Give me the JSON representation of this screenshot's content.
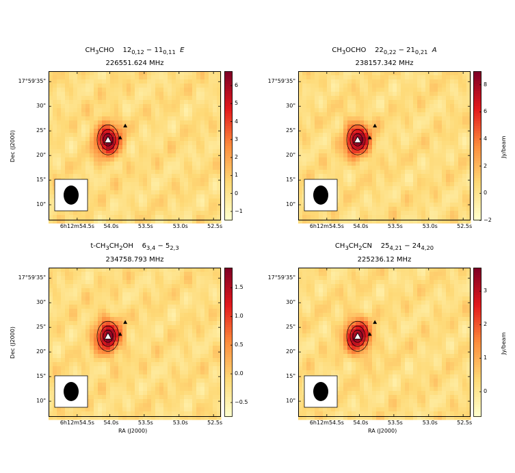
{
  "chart_data": [
    {
      "type": "heatmap",
      "molecule_html": "CH<sub>3</sub>CHO",
      "molecule_text": "CH3CHO",
      "transition_html": "12<sub>0,12</sub> &minus; 11<sub>0,11</sub> &nbsp;<i>E</i>",
      "transition_text": "12_{0,12} - 11_{0,11} E",
      "frequency": "226551.624 MHz",
      "ra_ticks": [
        "6h12m54.5s",
        "54.0s",
        "53.5s",
        "53.0s",
        "52.5s"
      ],
      "dec_ticks": [
        "17°59'35\"",
        "30\"",
        "25\"",
        "20\"",
        "15\"",
        "10\""
      ],
      "xlabel": "",
      "ylabel": "Dec (J2000)",
      "colorbar": {
        "ticks": [
          "6",
          "5",
          "4",
          "3",
          "2",
          "1",
          "0",
          "−1"
        ],
        "values": [
          6,
          5,
          4,
          3,
          2,
          1,
          0,
          -1
        ],
        "min": -1.5,
        "max": 6.8,
        "label": ""
      },
      "peak": 6.5
    },
    {
      "type": "heatmap",
      "molecule_html": "CH<sub>3</sub>OCHO",
      "molecule_text": "CH3OCHO",
      "transition_html": "22<sub>0,22</sub> &minus; 21<sub>0,21</sub> &nbsp;<i>A</i>",
      "transition_text": "22_{0,22} - 21_{0,21} A",
      "frequency": "238157.342 MHz",
      "ra_ticks": [
        "6h12m54.5s",
        "54.0s",
        "53.5s",
        "53.0s",
        "52.5s"
      ],
      "dec_ticks": [
        "17°59'35\"",
        "30\"",
        "25\"",
        "20\"",
        "15\"",
        "10\""
      ],
      "xlabel": "",
      "ylabel": "",
      "colorbar": {
        "ticks": [
          "8",
          "6",
          "4",
          "2",
          "0",
          "−2"
        ],
        "values": [
          8,
          6,
          4,
          2,
          0,
          -2
        ],
        "min": -2,
        "max": 9,
        "label": "Jy/beam"
      },
      "peak": 8.7
    },
    {
      "type": "heatmap",
      "molecule_html": "t-CH<sub>3</sub>CH<sub>2</sub>OH",
      "molecule_text": "t-CH3CH2OH",
      "transition_html": "6<sub>3,4</sub> &minus; 5<sub>2,3</sub>",
      "transition_text": "6_{3,4} - 5_{2,3}",
      "frequency": "234758.793 MHz",
      "ra_ticks": [
        "6h12m54.5s",
        "54.0s",
        "53.5s",
        "53.0s",
        "52.5s"
      ],
      "dec_ticks": [
        "17°59'35\"",
        "30\"",
        "25\"",
        "20\"",
        "15\"",
        "10\""
      ],
      "xlabel": "RA (J2000)",
      "ylabel": "Dec (J2000)",
      "colorbar": {
        "ticks": [
          "1.5",
          "1.0",
          "0.5",
          "0.0",
          "−0.5"
        ],
        "values": [
          1.5,
          1.0,
          0.5,
          0.0,
          -0.5
        ],
        "min": -0.75,
        "max": 1.85,
        "label": ""
      },
      "peak": 1.75
    },
    {
      "type": "heatmap",
      "molecule_html": "CH<sub>3</sub>CH<sub>2</sub>CN",
      "molecule_text": "CH3CH2CN",
      "transition_html": "25<sub>4,21</sub> &minus; 24<sub>4,20</sub>",
      "transition_text": "25_{4,21} - 24_{4,20}",
      "frequency": "225236.12 MHz",
      "ra_ticks": [
        "6h12m54.5s",
        "54.0s",
        "53.5s",
        "53.0s",
        "52.5s"
      ],
      "dec_ticks": [
        "17°59'35\"",
        "30\"",
        "25\"",
        "20\"",
        "15\"",
        "10\""
      ],
      "xlabel": "RA (J2000)",
      "ylabel": "",
      "colorbar": {
        "ticks": [
          "3",
          "2",
          "1",
          "0"
        ],
        "values": [
          3,
          2,
          1,
          0
        ],
        "min": -0.75,
        "max": 3.7,
        "label": "Jy/beam"
      },
      "peak": 3.5
    }
  ],
  "colors": {
    "cmap_low": "#ffffcc",
    "cmap_mid1": "#fed976",
    "cmap_mid2": "#fd8d3c",
    "cmap_mid3": "#e31a1c",
    "cmap_high": "#800026",
    "marker": "#000000",
    "peak_marker_fill": "#ffffff"
  }
}
